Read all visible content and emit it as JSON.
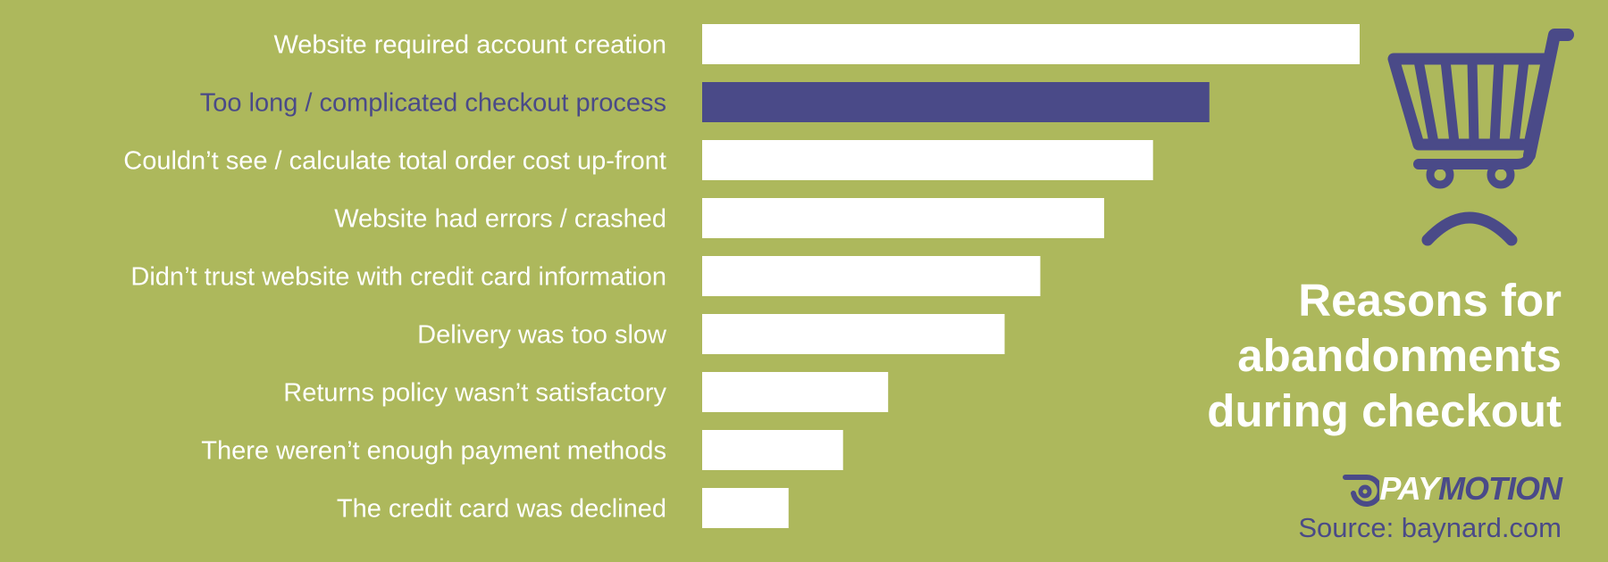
{
  "chart_data": {
    "type": "bar",
    "orientation": "horizontal",
    "categories": [
      "Website required account creation",
      "Too long / complicated checkout process",
      "Couldn’t see / calculate total order cost up-front",
      "Website had errors / crashed",
      "Didn’t trust website with credit card information",
      "Delivery was too slow",
      "Returns policy wasn’t satisfactory",
      "There weren’t enough payment methods",
      "The credit card was declined"
    ],
    "values": [
      35,
      27,
      24,
      21.4,
      18,
      16.1,
      9.9,
      7.5,
      4.6
    ],
    "highlight_index": 1,
    "title": "Reasons for abandonments during checkout",
    "xlim": [
      0,
      35
    ],
    "grid": false,
    "legend": "none",
    "colors": {
      "bar": "#ffffff",
      "highlight": "#4a4a88",
      "label": "#ffffff",
      "highlight_label": "#4a4a88",
      "background": "#adb85c"
    }
  },
  "title_lines": [
    "Reasons for",
    "abandonments",
    "during checkout"
  ],
  "logo": {
    "pay": "PAY",
    "motion": "MOTION",
    "icon": "paymotion-logo-icon"
  },
  "source": "Source: baynard.com",
  "icons": {
    "cart": "sad-shopping-cart-icon"
  }
}
